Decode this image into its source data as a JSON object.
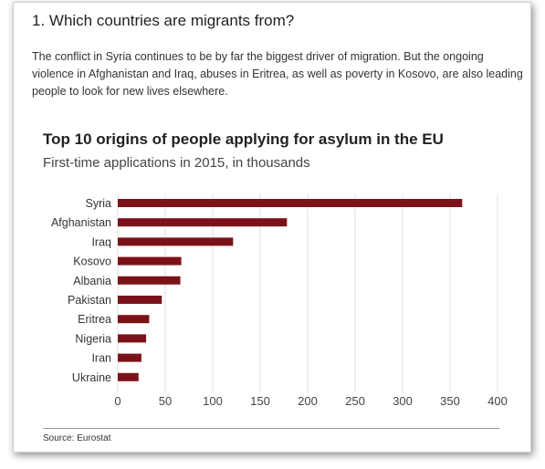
{
  "section": {
    "heading": "1. Which countries are migrants from?",
    "intro": "The conflict in Syria continues to be by far the biggest driver of migration. But the ongoing violence in Afghanistan and Iraq, abuses in Eritrea, as well as poverty in Kosovo, are also leading people to look for new lives elsewhere."
  },
  "chart_data": {
    "type": "bar",
    "orientation": "horizontal",
    "title": "Top 10 origins of people applying for asylum in the EU",
    "subtitle": "First-time applications in 2015, in thousands",
    "categories": [
      "Syria",
      "Afghanistan",
      "Iraq",
      "Kosovo",
      "Albania",
      "Pakistan",
      "Eritrea",
      "Nigeria",
      "Iran",
      "Ukraine"
    ],
    "values": [
      362.8,
      178.2,
      121.5,
      66.9,
      65.9,
      46.4,
      33.1,
      29.9,
      24.9,
      21.9
    ],
    "xlim": [
      0,
      400
    ],
    "xticks": [
      0,
      50,
      100,
      150,
      200,
      250,
      300,
      350,
      400
    ],
    "grid": "vertical",
    "bar_color": "#7b1219"
  },
  "footer": {
    "source": "Source: Eurostat"
  }
}
